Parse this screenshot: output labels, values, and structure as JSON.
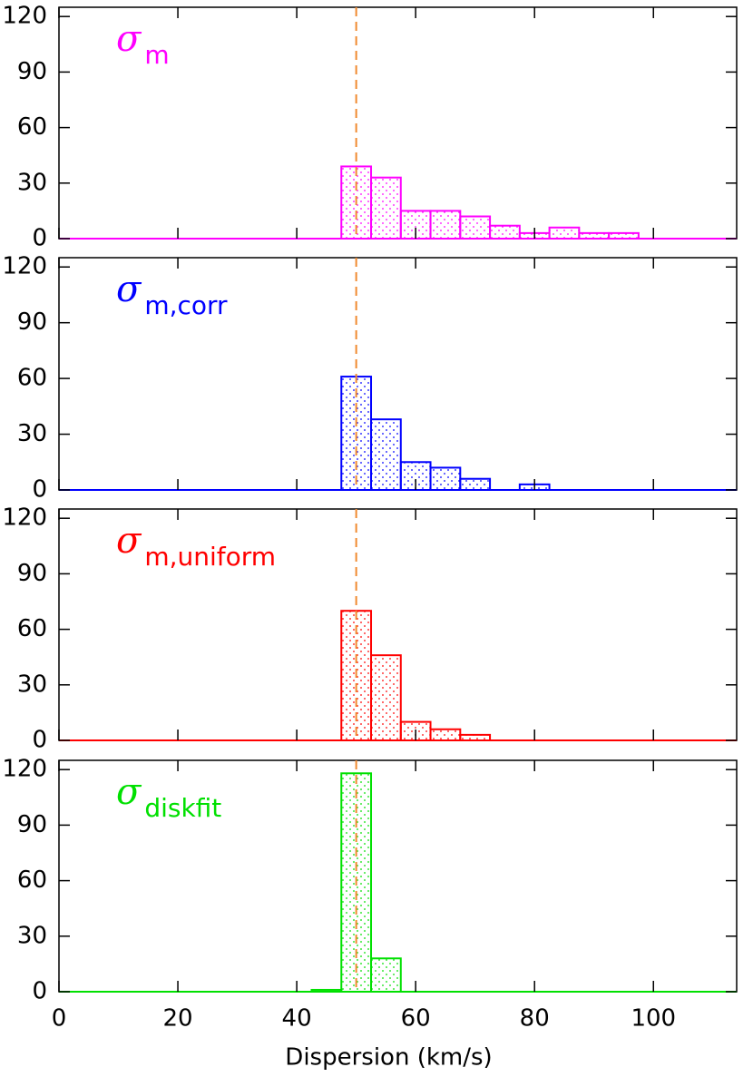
{
  "chart_data": [
    {
      "type": "histogram",
      "label": {
        "symbol": "σ",
        "subscript": "m"
      },
      "color": "#ff00ff",
      "bins": [
        42.5,
        47.5,
        52.5,
        57.5,
        62.5,
        67.5,
        72.5,
        77.5,
        82.5,
        87.5,
        92.5,
        97.5
      ],
      "counts": [
        0,
        39,
        33,
        15,
        15,
        12,
        7,
        3,
        6,
        3,
        3
      ],
      "xlim": [
        0,
        114
      ],
      "xticks": [
        0,
        20,
        40,
        60,
        80,
        100
      ],
      "ylim": [
        0,
        125
      ],
      "yticks": [
        0,
        30,
        60,
        90,
        120
      ],
      "vline": {
        "x": 50,
        "color": "#f08a30"
      }
    },
    {
      "type": "histogram",
      "label": {
        "symbol": "σ",
        "subscript": "m,corr"
      },
      "color": "#0000ff",
      "bins": [
        42.5,
        47.5,
        52.5,
        57.5,
        62.5,
        67.5,
        72.5,
        77.5,
        82.5,
        87.5,
        92.5,
        97.5
      ],
      "counts": [
        0,
        61,
        38,
        15,
        12,
        6,
        0,
        3,
        0,
        0,
        0
      ],
      "xlim": [
        0,
        114
      ],
      "xticks": [
        0,
        20,
        40,
        60,
        80,
        100
      ],
      "ylim": [
        0,
        125
      ],
      "yticks": [
        0,
        30,
        60,
        90,
        120
      ],
      "vline": {
        "x": 50,
        "color": "#f08a30"
      }
    },
    {
      "type": "histogram",
      "label": {
        "symbol": "σ",
        "subscript": "m,uniform"
      },
      "color": "#ff0000",
      "bins": [
        42.5,
        47.5,
        52.5,
        57.5,
        62.5,
        67.5,
        72.5,
        77.5,
        82.5,
        87.5,
        92.5,
        97.5
      ],
      "counts": [
        0,
        70,
        46,
        10,
        6,
        3,
        0,
        0,
        0,
        0,
        0
      ],
      "xlim": [
        0,
        114
      ],
      "xticks": [
        0,
        20,
        40,
        60,
        80,
        100
      ],
      "ylim": [
        0,
        125
      ],
      "yticks": [
        0,
        30,
        60,
        90,
        120
      ],
      "vline": {
        "x": 50,
        "color": "#f08a30"
      }
    },
    {
      "type": "histogram",
      "label": {
        "symbol": "σ",
        "subscript": "diskfit"
      },
      "color": "#00e000",
      "bins": [
        42.5,
        47.5,
        52.5,
        57.5,
        62.5,
        67.5,
        72.5,
        77.5,
        82.5,
        87.5,
        92.5,
        97.5
      ],
      "counts": [
        1,
        118,
        18,
        0,
        0,
        0,
        0,
        0,
        0,
        0,
        0
      ],
      "xlim": [
        0,
        114
      ],
      "xticks": [
        0,
        20,
        40,
        60,
        80,
        100
      ],
      "ylim": [
        0,
        125
      ],
      "yticks": [
        0,
        30,
        60,
        90,
        120
      ],
      "vline": {
        "x": 50,
        "color": "#f08a30"
      },
      "x_label": "Dispersion (km/s)",
      "show_x_tick_labels": true
    }
  ]
}
